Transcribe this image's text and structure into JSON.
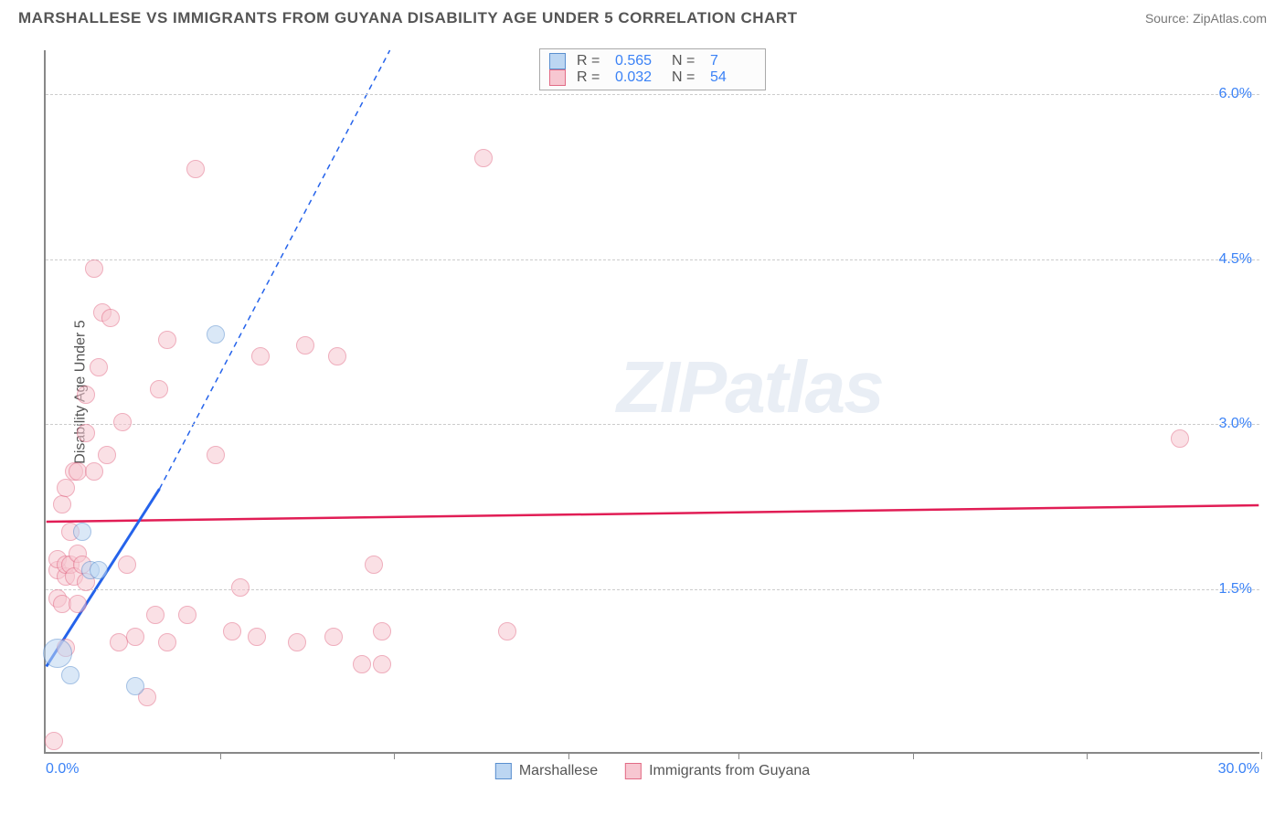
{
  "header": {
    "title": "MARSHALLESE VS IMMIGRANTS FROM GUYANA DISABILITY AGE UNDER 5 CORRELATION CHART",
    "source": "Source: ZipAtlas.com"
  },
  "chart": {
    "type": "scatter",
    "ylabel": "Disability Age Under 5",
    "watermark": "ZIPatlas",
    "xlim": [
      0,
      30
    ],
    "ylim": [
      0,
      6.4
    ],
    "xtick_min": "0.0%",
    "xtick_max": "30.0%",
    "yticks": [
      {
        "v": 1.5,
        "label": "1.5%"
      },
      {
        "v": 3.0,
        "label": "3.0%"
      },
      {
        "v": 4.5,
        "label": "4.5%"
      },
      {
        "v": 6.0,
        "label": "6.0%"
      }
    ],
    "xgrid_vals": [
      4.3,
      8.6,
      12.9,
      17.1,
      21.4,
      25.7,
      30
    ],
    "background_color": "#ffffff",
    "grid_color": "#cccccc",
    "axis_color": "#888888",
    "tick_text_color": "#3b82f6",
    "marker_radius": 10,
    "series": {
      "blue": {
        "label_stats": "Marshallese",
        "fill": "#bcd6f2",
        "stroke": "#5a8fcf",
        "line_color": "#2563eb",
        "r_value": "0.565",
        "n_value": "7",
        "reg_start": {
          "x": 0,
          "y": 0.78
        },
        "reg_solid_end": {
          "x": 2.8,
          "y": 2.4
        },
        "reg_dash_end": {
          "x": 8.5,
          "y": 6.4
        },
        "points": [
          {
            "x": 0.3,
            "y": 0.9,
            "r": 16
          },
          {
            "x": 0.6,
            "y": 0.7
          },
          {
            "x": 0.9,
            "y": 2.0
          },
          {
            "x": 1.1,
            "y": 1.65
          },
          {
            "x": 1.3,
            "y": 1.65
          },
          {
            "x": 2.2,
            "y": 0.6
          },
          {
            "x": 4.2,
            "y": 3.8
          }
        ]
      },
      "pink": {
        "label_stats": "Immigrants from Guyana",
        "fill": "#f7c7d1",
        "stroke": "#e26b86",
        "line_color": "#e11d55",
        "r_value": "0.032",
        "n_value": "54",
        "reg_start": {
          "x": 0,
          "y": 2.1
        },
        "reg_end": {
          "x": 30,
          "y": 2.25
        },
        "points": [
          {
            "x": 0.2,
            "y": 0.1
          },
          {
            "x": 0.3,
            "y": 1.4
          },
          {
            "x": 0.3,
            "y": 1.65
          },
          {
            "x": 0.3,
            "y": 1.75
          },
          {
            "x": 0.4,
            "y": 1.35
          },
          {
            "x": 0.4,
            "y": 2.25
          },
          {
            "x": 0.5,
            "y": 0.95
          },
          {
            "x": 0.5,
            "y": 1.6
          },
          {
            "x": 0.5,
            "y": 1.7
          },
          {
            "x": 0.5,
            "y": 2.4
          },
          {
            "x": 0.6,
            "y": 1.7
          },
          {
            "x": 0.6,
            "y": 2.0
          },
          {
            "x": 0.7,
            "y": 1.6
          },
          {
            "x": 0.7,
            "y": 2.55
          },
          {
            "x": 0.8,
            "y": 1.35
          },
          {
            "x": 0.8,
            "y": 1.8
          },
          {
            "x": 0.8,
            "y": 2.55
          },
          {
            "x": 0.9,
            "y": 1.7
          },
          {
            "x": 1.0,
            "y": 1.55
          },
          {
            "x": 1.0,
            "y": 2.9
          },
          {
            "x": 1.0,
            "y": 3.25
          },
          {
            "x": 1.2,
            "y": 2.55
          },
          {
            "x": 1.2,
            "y": 4.4
          },
          {
            "x": 1.3,
            "y": 3.5
          },
          {
            "x": 1.4,
            "y": 4.0
          },
          {
            "x": 1.5,
            "y": 2.7
          },
          {
            "x": 1.6,
            "y": 3.95
          },
          {
            "x": 1.8,
            "y": 1.0
          },
          {
            "x": 1.9,
            "y": 3.0
          },
          {
            "x": 2.0,
            "y": 1.7
          },
          {
            "x": 2.2,
            "y": 1.05
          },
          {
            "x": 2.5,
            "y": 0.5
          },
          {
            "x": 2.7,
            "y": 1.25
          },
          {
            "x": 2.8,
            "y": 3.3
          },
          {
            "x": 3.0,
            "y": 1.0
          },
          {
            "x": 3.0,
            "y": 3.75
          },
          {
            "x": 3.5,
            "y": 1.25
          },
          {
            "x": 3.7,
            "y": 5.3
          },
          {
            "x": 4.2,
            "y": 2.7
          },
          {
            "x": 4.6,
            "y": 1.1
          },
          {
            "x": 4.8,
            "y": 1.5
          },
          {
            "x": 5.2,
            "y": 1.05
          },
          {
            "x": 5.3,
            "y": 3.6
          },
          {
            "x": 6.2,
            "y": 1.0
          },
          {
            "x": 6.4,
            "y": 3.7
          },
          {
            "x": 7.1,
            "y": 1.05
          },
          {
            "x": 7.2,
            "y": 3.6
          },
          {
            "x": 7.8,
            "y": 0.8
          },
          {
            "x": 8.1,
            "y": 1.7
          },
          {
            "x": 8.3,
            "y": 0.8
          },
          {
            "x": 8.3,
            "y": 1.1
          },
          {
            "x": 10.8,
            "y": 5.4
          },
          {
            "x": 11.4,
            "y": 1.1
          },
          {
            "x": 28.0,
            "y": 2.85
          }
        ]
      }
    }
  },
  "legend_top": {
    "r_label": "R =",
    "n_label": "N ="
  },
  "legend_bottom": {
    "blue_label": "Marshallese",
    "pink_label": "Immigrants from Guyana"
  }
}
